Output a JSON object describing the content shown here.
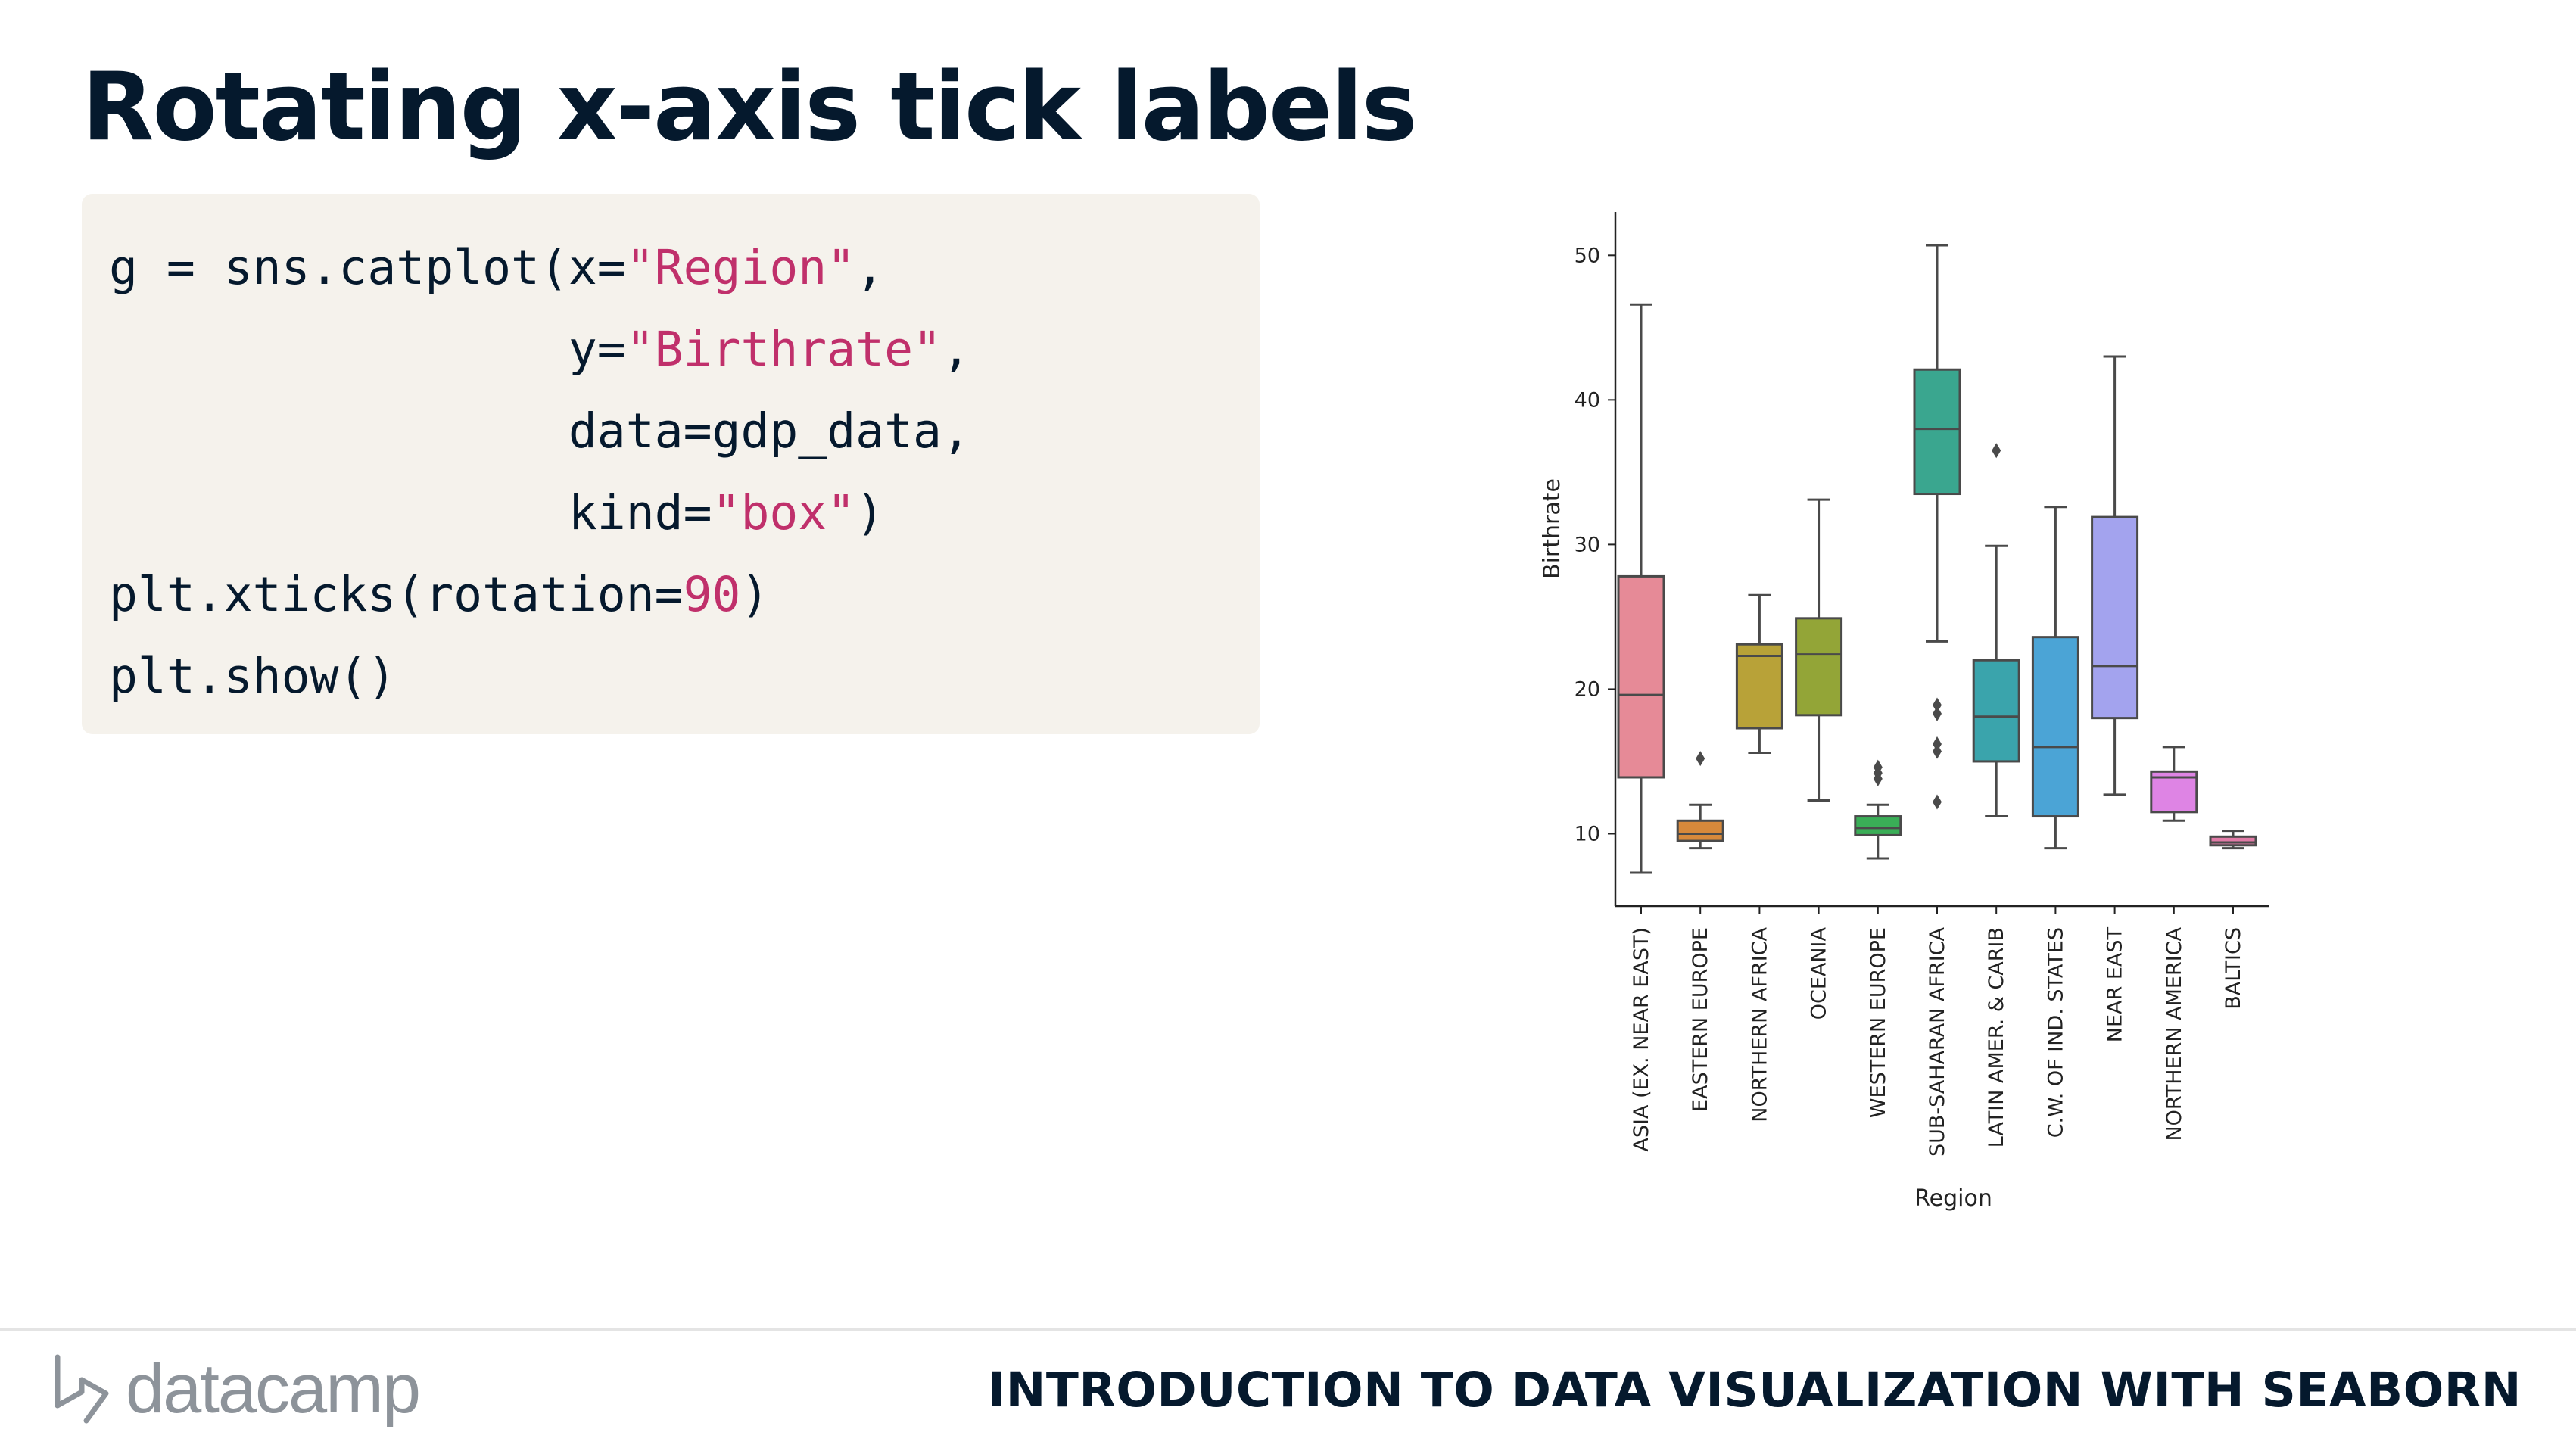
{
  "slide": {
    "title": "Rotating x-axis tick labels",
    "course_title": "INTRODUCTION TO DATA VISUALIZATION WITH SEABORN",
    "logo_text": "datacamp"
  },
  "code": {
    "lines": [
      [
        {
          "t": "g = sns.catplot(x=",
          "c": "plain"
        },
        {
          "t": "\"Region\"",
          "c": "str"
        },
        {
          "t": ",",
          "c": "plain"
        }
      ],
      [
        {
          "t": "                y=",
          "c": "plain"
        },
        {
          "t": "\"Birthrate\"",
          "c": "str"
        },
        {
          "t": ",",
          "c": "plain"
        }
      ],
      [
        {
          "t": "                data=gdp_data,",
          "c": "plain"
        }
      ],
      [
        {
          "t": "                kind=",
          "c": "plain"
        },
        {
          "t": "\"box\"",
          "c": "str"
        },
        {
          "t": ")",
          "c": "plain"
        }
      ],
      [
        {
          "t": "plt.xticks(rotation=",
          "c": "plain"
        },
        {
          "t": "90",
          "c": "num"
        },
        {
          "t": ")",
          "c": "plain"
        }
      ],
      [
        {
          "t": "plt.show()",
          "c": "plain"
        }
      ]
    ]
  },
  "chart_data": {
    "type": "box",
    "xlabel": "Region",
    "ylabel": "Birthrate",
    "ylim": [
      5,
      53
    ],
    "yticks": [
      10,
      20,
      30,
      40,
      50
    ],
    "x_tick_rotation": 90,
    "categories": [
      "ASIA (EX. NEAR EAST)",
      "EASTERN EUROPE",
      "NORTHERN AFRICA",
      "OCEANIA",
      "WESTERN EUROPE",
      "SUB-SAHARAN AFRICA",
      "LATIN AMER. & CARIB",
      "C.W. OF IND. STATES",
      "NEAR EAST",
      "NORTHERN AMERICA",
      "BALTICS"
    ],
    "boxes": [
      {
        "whislo": 7.3,
        "q1": 13.9,
        "med": 19.6,
        "q3": 27.8,
        "whishi": 46.6,
        "fliers": [],
        "color": "#e68a97"
      },
      {
        "whislo": 9.0,
        "q1": 9.5,
        "med": 10.0,
        "q3": 10.9,
        "whishi": 12.0,
        "fliers": [
          15.2
        ],
        "color": "#d7893b"
      },
      {
        "whislo": 15.6,
        "q1": 17.3,
        "med": 22.3,
        "q3": 23.1,
        "whishi": 26.5,
        "fliers": [],
        "color": "#b8a238"
      },
      {
        "whislo": 12.3,
        "q1": 18.2,
        "med": 22.4,
        "q3": 24.9,
        "whishi": 33.1,
        "fliers": [],
        "color": "#93a537"
      },
      {
        "whislo": 8.3,
        "q1": 9.9,
        "med": 10.4,
        "q3": 11.2,
        "whishi": 12.0,
        "fliers": [
          13.8,
          14.2,
          14.6
        ],
        "color": "#3aae57"
      },
      {
        "whislo": 23.3,
        "q1": 33.5,
        "med": 38.0,
        "q3": 42.1,
        "whishi": 50.7,
        "fliers": [
          12.2,
          15.7,
          16.2,
          18.3,
          18.9
        ],
        "color": "#3aa68f"
      },
      {
        "whislo": 11.2,
        "q1": 15.0,
        "med": 18.1,
        "q3": 22.0,
        "whishi": 29.9,
        "fliers": [
          36.5
        ],
        "color": "#3aa4ac"
      },
      {
        "whislo": 9.0,
        "q1": 11.2,
        "med": 16.0,
        "q3": 23.6,
        "whishi": 32.6,
        "fliers": [],
        "color": "#4ba4d6"
      },
      {
        "whislo": 12.7,
        "q1": 18.0,
        "med": 21.6,
        "q3": 31.9,
        "whishi": 43.0,
        "fliers": [],
        "color": "#a3a3ee"
      },
      {
        "whislo": 10.9,
        "q1": 11.5,
        "med": 13.9,
        "q3": 14.3,
        "whishi": 16.0,
        "fliers": [],
        "color": "#de84e4"
      },
      {
        "whislo": 9.0,
        "q1": 9.2,
        "med": 9.4,
        "q3": 9.8,
        "whishi": 10.2,
        "fliers": [],
        "color": "#e07aa6"
      }
    ]
  }
}
